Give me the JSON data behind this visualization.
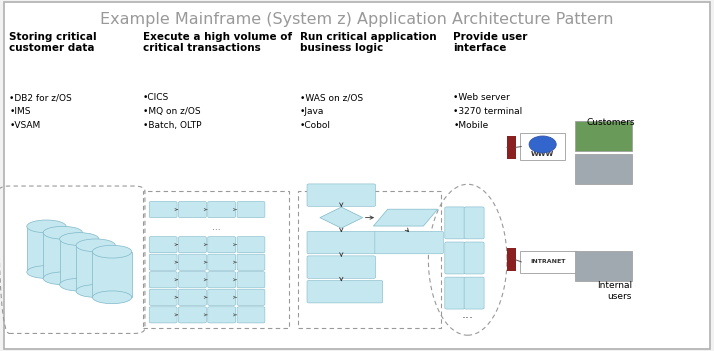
{
  "title": "Example Mainframe (System z) Application Architecture Pattern",
  "title_color": "#999999",
  "title_fontsize": 11.5,
  "bg_color": "#f2f2f2",
  "border_color": "#b0b0b0",
  "box_fill": "#c5e8f0",
  "box_edge": "#80b8c8",
  "dashed_border": "#999999",
  "sections": [
    {
      "header": "Storing critical\ncustomer data",
      "bullets": "•DB2 for z/OS\n•IMS\n•VSAM",
      "hx": 0.013,
      "hy": 0.91
    },
    {
      "header": "Execute a high volume of\ncritical transactions",
      "bullets": "•CICS\n•MQ on z/OS\n•Batch, OLTP",
      "hx": 0.2,
      "hy": 0.91
    },
    {
      "header": "Run critical application\nbusiness logic",
      "bullets": "•WAS on z/OS\n•Java\n•Cobol",
      "hx": 0.42,
      "hy": 0.91
    },
    {
      "header": "Provide user\ninterface",
      "bullets": "•Web server\n•3270 terminal\n•Mobile",
      "hx": 0.635,
      "hy": 0.91
    }
  ]
}
